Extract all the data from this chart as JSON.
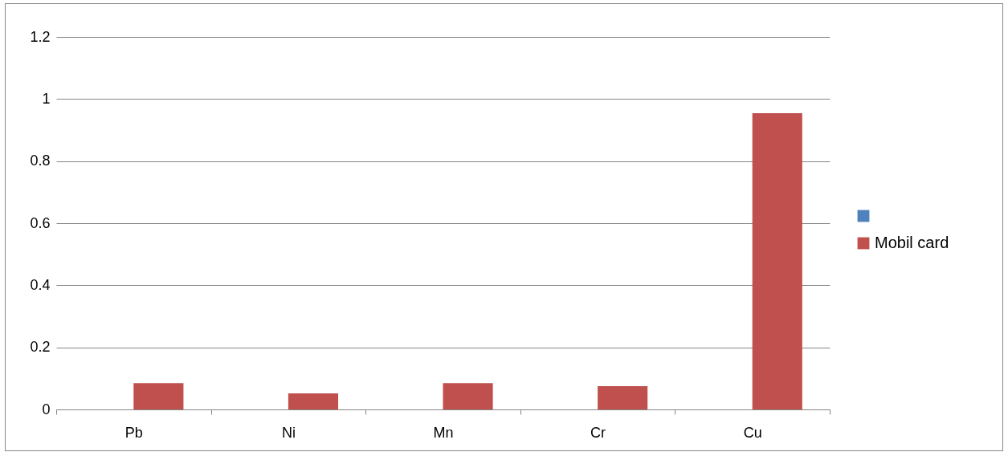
{
  "chart_data": {
    "type": "bar",
    "categories": [
      "Pb",
      "Ni",
      "Mn",
      "Cr",
      "Cu"
    ],
    "series": [
      {
        "color": "#4f81bd",
        "values": [
          null,
          null,
          null,
          null,
          null
        ]
      },
      {
        "name": "Mobil card",
        "color": "#c0504d",
        "values": [
          0.085,
          0.052,
          0.085,
          0.075,
          0.954
        ]
      }
    ],
    "ylim": [
      0,
      1.2
    ],
    "yticks": [
      0,
      0.2,
      0.4,
      0.6,
      0.8,
      1,
      1.2
    ],
    "grid": "y",
    "legend": "right"
  }
}
